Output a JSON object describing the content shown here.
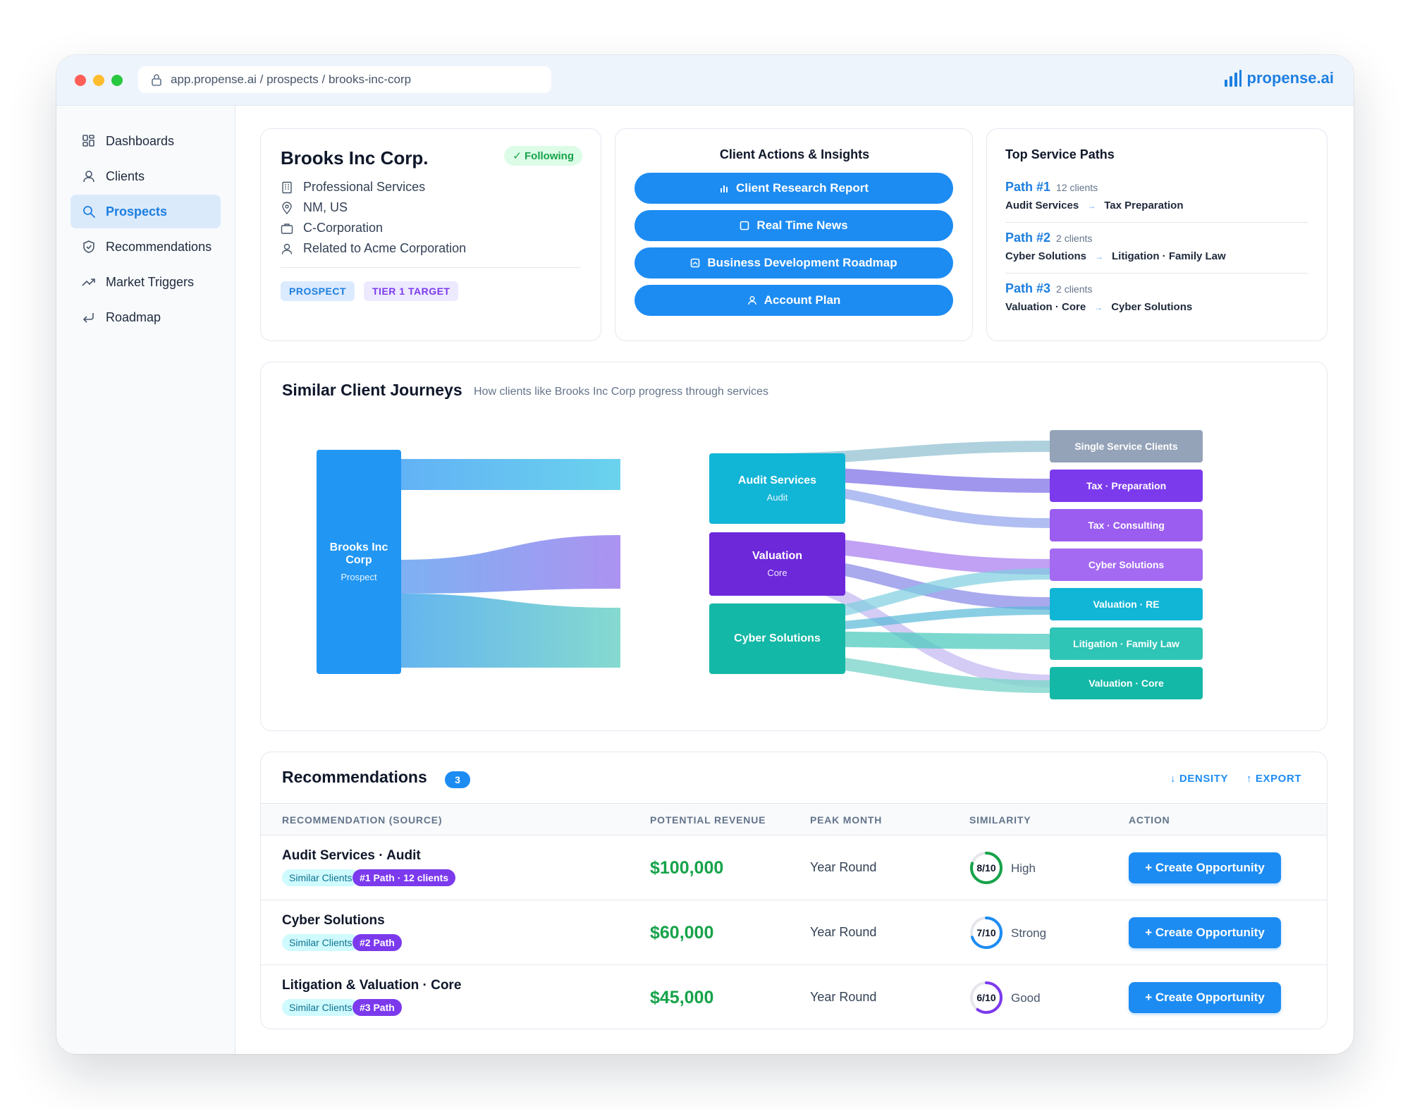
{
  "browser": {
    "url": "app.propense.ai / prospects / brooks-inc-corp",
    "brand": "propense.ai"
  },
  "sidebar": {
    "items": [
      {
        "label": "Dashboards",
        "icon": "grid-icon"
      },
      {
        "label": "Clients",
        "icon": "user-icon"
      },
      {
        "label": "Prospects",
        "icon": "search-icon",
        "active": true
      },
      {
        "label": "Recommendations",
        "icon": "shield-check-icon"
      },
      {
        "label": "Market Triggers",
        "icon": "trending-up-icon"
      },
      {
        "label": "Roadmap",
        "icon": "return-arrow-icon"
      }
    ]
  },
  "client": {
    "name": "Brooks Inc Corp.",
    "follow_status": "✓ Following",
    "industry": "Professional Services",
    "location": "NM, US",
    "entity_type": "C-Corporation",
    "relation": "Related to Acme Corporation",
    "tags": [
      "PROSPECT",
      "TIER 1 TARGET"
    ]
  },
  "actions": {
    "title": "Client Actions & Insights",
    "buttons": [
      "Client Research Report",
      "Real Time News",
      "Business Development Roadmap",
      "Account Plan"
    ]
  },
  "service_paths": {
    "title": "Top Service Paths",
    "paths": [
      {
        "label": "Path #1",
        "count": "12 clients",
        "from": "Audit Services",
        "to": "Tax Preparation"
      },
      {
        "label": "Path #2",
        "count": "2 clients",
        "from": "Cyber Solutions",
        "to": "Litigation · Family Law"
      },
      {
        "label": "Path #3",
        "count": "2 clients",
        "from": "Valuation · Core",
        "to": "Cyber Solutions"
      }
    ]
  },
  "journeys": {
    "title": "Similar Client Journeys",
    "subtitle": "How clients like Brooks Inc Corp progress through services",
    "source": {
      "title": "Brooks Inc Corp",
      "sub": "Prospect"
    },
    "middle": [
      {
        "title": "Audit Services",
        "sub": "Audit"
      },
      {
        "title": "Valuation",
        "sub": "Core"
      },
      {
        "title": "Cyber Solutions",
        "sub": ""
      }
    ],
    "targets": [
      "Single Service Clients",
      "Tax · Preparation",
      "Tax · Consulting",
      "Cyber Solutions",
      "Valuation · RE",
      "Litigation · Family Law",
      "Valuation · Core"
    ],
    "colors": {
      "source": "#2196f3",
      "audit": "#11b5d6",
      "valuation": "#6d28d9",
      "cyber": "#14b8a6",
      "single": "#94a3b8",
      "tax_prep": "#7c3aed",
      "tax_consult": "#9b5cf0",
      "cyber_target": "#a46af2",
      "valuation_re": "#11b5d6",
      "litigation": "#2ec4b6",
      "valuation_core": "#14b8a6"
    }
  },
  "recommendations": {
    "title": "Recommendations",
    "count": "3",
    "density_label": "↓ DENSITY",
    "export_label": "↑ EXPORT",
    "columns": [
      "RECOMMENDATION (SOURCE)",
      "POTENTIAL REVENUE",
      "PEAK MONTH",
      "SIMILARITY",
      "ACTION"
    ],
    "rows": [
      {
        "name": "Audit Services · Audit",
        "source": "Similar Clients",
        "path": "#1 Path · 12 clients",
        "revenue": "$100,000",
        "peak": "Year Round",
        "score": "8/10",
        "score_value": 0.8,
        "score_color": "#16a34a",
        "similarity": "High",
        "action": "+ Create Opportunity"
      },
      {
        "name": "Cyber Solutions",
        "source": "Similar Clients",
        "path": "#2 Path",
        "revenue": "$60,000",
        "peak": "Year Round",
        "score": "7/10",
        "score_value": 0.7,
        "score_color": "#1d8cf2",
        "similarity": "Strong",
        "action": "+ Create Opportunity"
      },
      {
        "name": "Litigation & Valuation · Core",
        "source": "Similar Clients",
        "path": "#3 Path",
        "revenue": "$45,000",
        "peak": "Year Round",
        "score": "6/10",
        "score_value": 0.6,
        "score_color": "#7c3aed",
        "similarity": "Good",
        "action": "+ Create Opportunity"
      }
    ]
  }
}
